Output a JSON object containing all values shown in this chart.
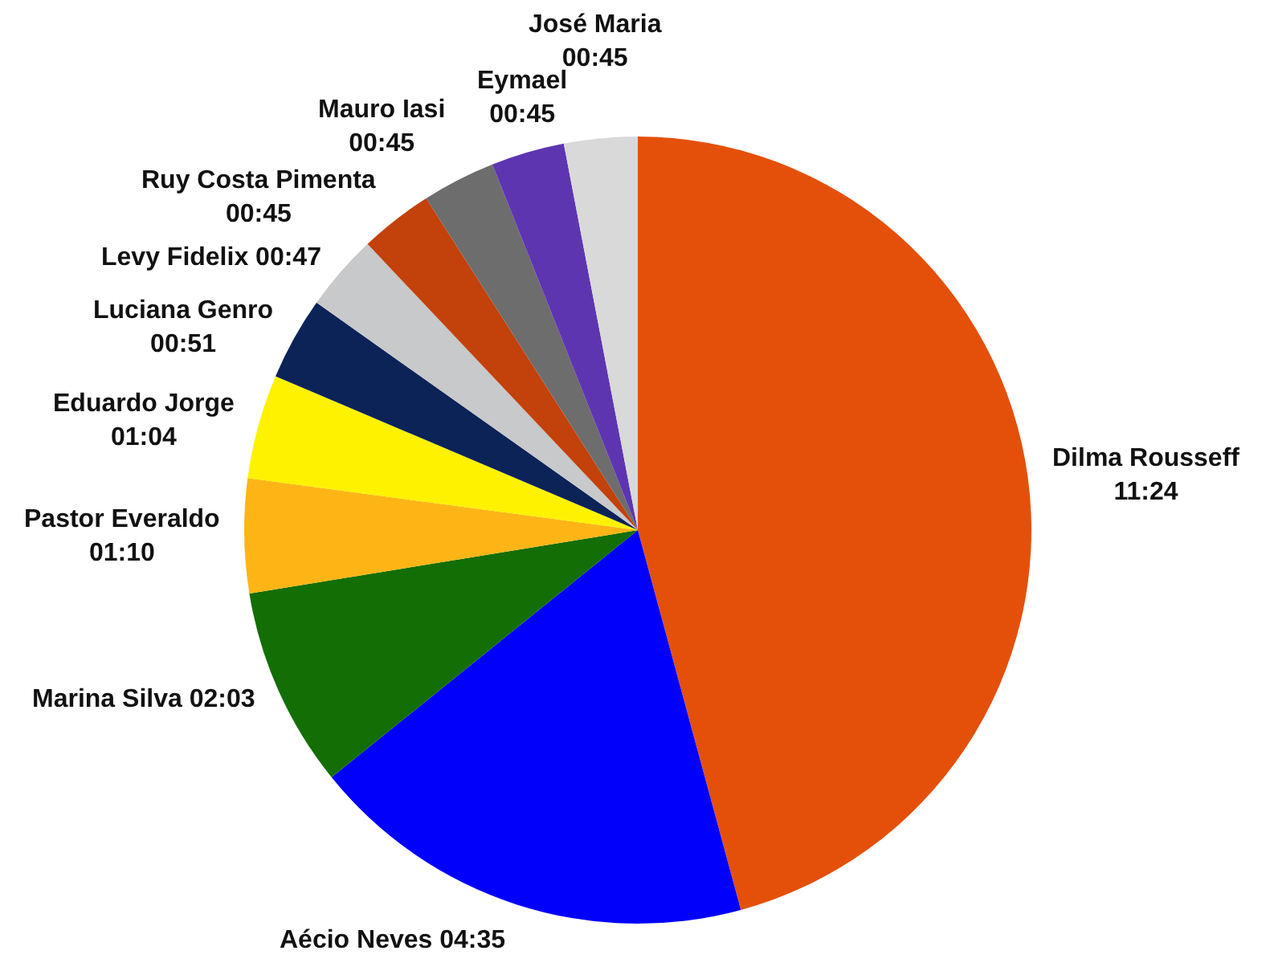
{
  "chart_data": {
    "type": "pie",
    "categories": [
      "Dilma Rousseff",
      "Aécio Neves",
      "Marina Silva",
      "Pastor Everaldo",
      "Eduardo Jorge",
      "Luciana Genro",
      "Levy Fidelix",
      "Ruy Costa Pimenta",
      "Mauro Iasi",
      "Eymael",
      "José Maria"
    ],
    "values": [
      684,
      275,
      123,
      70,
      64,
      51,
      47,
      45,
      45,
      45,
      45
    ],
    "value_labels": [
      "11:24",
      "04:35",
      "02:03",
      "01:10",
      "01:04",
      "00:51",
      "00:47",
      "00:45",
      "00:45",
      "00:45",
      "00:45"
    ],
    "colors": [
      "#e4500a",
      "#0000fb",
      "#136e05",
      "#fdb515",
      "#fef200",
      "#0c2358",
      "#c8c9ca",
      "#c3410b",
      "#6d6d6d",
      "#5e35b1",
      "#d9d9d9"
    ]
  }
}
